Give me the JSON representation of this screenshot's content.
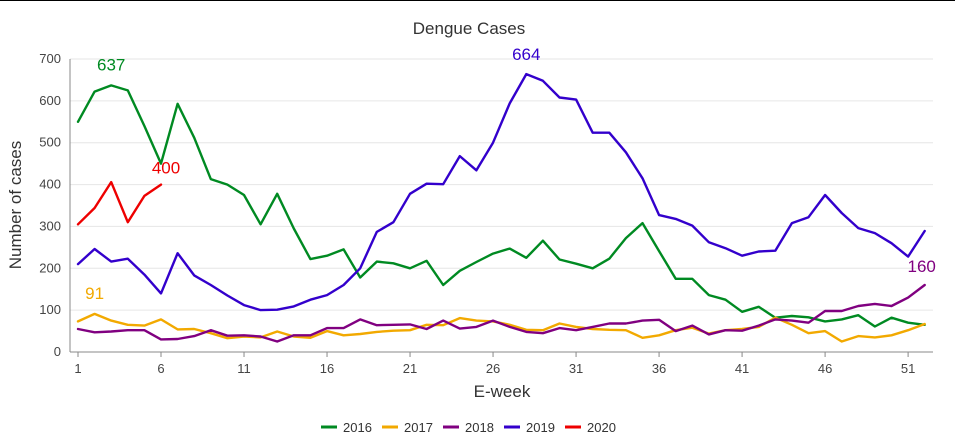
{
  "chart_data": {
    "type": "line",
    "title": "Dengue Cases",
    "xlabel": "E-week",
    "ylabel": "Number of cases",
    "xlim": [
      1,
      52
    ],
    "ylim": [
      0,
      700
    ],
    "x_ticks": [
      1,
      6,
      11,
      16,
      21,
      26,
      31,
      36,
      41,
      46,
      51
    ],
    "y_ticks": [
      0,
      100,
      200,
      300,
      400,
      500,
      600,
      700
    ],
    "grid": "horizontal",
    "legend_position": "bottom",
    "series": [
      {
        "name": "2016",
        "color": "#008a22",
        "x": [
          1,
          2,
          3,
          4,
          5,
          6,
          7,
          8,
          9,
          10,
          11,
          12,
          13,
          14,
          15,
          16,
          17,
          18,
          19,
          20,
          21,
          22,
          23,
          24,
          25,
          26,
          27,
          28,
          29,
          30,
          31,
          32,
          33,
          34,
          35,
          36,
          37,
          38,
          39,
          40,
          41,
          42,
          43,
          44,
          45,
          46,
          47,
          48,
          49,
          50,
          51,
          52
        ],
        "values": [
          550,
          622,
          637,
          625,
          540,
          450,
          593,
          512,
          413,
          400,
          375,
          305,
          378,
          295,
          222,
          230,
          245,
          178,
          216,
          212,
          200,
          218,
          160,
          194,
          215,
          235,
          247,
          225,
          266,
          221,
          211,
          200,
          223,
          272,
          308,
          241,
          175,
          175,
          136,
          125,
          96,
          108,
          82,
          86,
          83,
          73,
          78,
          88,
          61,
          82,
          70,
          65
        ]
      },
      {
        "name": "2017",
        "color": "#f2a900",
        "x": [
          1,
          2,
          3,
          4,
          5,
          6,
          7,
          8,
          9,
          10,
          11,
          12,
          13,
          14,
          15,
          16,
          17,
          18,
          19,
          20,
          21,
          22,
          23,
          24,
          25,
          26,
          27,
          28,
          29,
          30,
          31,
          32,
          33,
          34,
          35,
          36,
          37,
          38,
          39,
          40,
          41,
          42,
          43,
          44,
          45,
          46,
          47,
          48,
          49,
          50,
          51,
          52
        ],
        "values": [
          73,
          91,
          75,
          65,
          63,
          78,
          54,
          55,
          45,
          33,
          37,
          35,
          49,
          37,
          34,
          50,
          40,
          43,
          48,
          51,
          52,
          65,
          64,
          81,
          75,
          73,
          65,
          53,
          52,
          68,
          60,
          55,
          53,
          52,
          34,
          40,
          52,
          58,
          44,
          52,
          55,
          60,
          82,
          65,
          45,
          50,
          25,
          38,
          35,
          40,
          52,
          67
        ]
      },
      {
        "name": "2018",
        "color": "#800080",
        "x": [
          1,
          2,
          3,
          4,
          5,
          6,
          7,
          8,
          9,
          10,
          11,
          12,
          13,
          14,
          15,
          16,
          17,
          18,
          19,
          20,
          21,
          22,
          23,
          24,
          25,
          26,
          27,
          28,
          29,
          30,
          31,
          32,
          33,
          34,
          35,
          36,
          37,
          38,
          39,
          40,
          41,
          42,
          43,
          44,
          45,
          46,
          47,
          48,
          49,
          50,
          51,
          52
        ],
        "values": [
          55,
          47,
          49,
          52,
          52,
          30,
          31,
          38,
          52,
          39,
          40,
          37,
          25,
          40,
          40,
          57,
          57,
          78,
          64,
          65,
          66,
          55,
          75,
          56,
          60,
          75,
          60,
          48,
          45,
          57,
          52,
          60,
          68,
          68,
          75,
          77,
          50,
          63,
          42,
          52,
          51,
          63,
          78,
          75,
          70,
          98,
          98,
          110,
          115,
          110,
          130,
          160
        ]
      },
      {
        "name": "2019",
        "color": "#3300cc",
        "x": [
          1,
          2,
          3,
          4,
          5,
          6,
          7,
          8,
          9,
          10,
          11,
          12,
          13,
          14,
          15,
          16,
          17,
          18,
          19,
          20,
          21,
          22,
          23,
          24,
          25,
          26,
          27,
          28,
          29,
          30,
          31,
          32,
          33,
          34,
          35,
          36,
          37,
          38,
          39,
          40,
          41,
          42,
          43,
          44,
          45,
          46,
          47,
          48,
          49,
          50,
          51,
          52
        ],
        "values": [
          210,
          246,
          216,
          223,
          185,
          140,
          236,
          183,
          160,
          135,
          112,
          100,
          101,
          109,
          125,
          136,
          160,
          200,
          287,
          310,
          378,
          402,
          401,
          468,
          434,
          500,
          594,
          664,
          648,
          608,
          603,
          524,
          524,
          477,
          415,
          327,
          318,
          302,
          262,
          248,
          230,
          240,
          242,
          308,
          322,
          375,
          332,
          296,
          284,
          260,
          228,
          289
        ]
      },
      {
        "name": "2020",
        "color": "#ee0000",
        "x": [
          1,
          2,
          3,
          4,
          5,
          6
        ],
        "values": [
          305,
          344,
          406,
          310,
          373,
          400
        ]
      }
    ],
    "annotations": [
      {
        "text": "637",
        "series": "2016",
        "x": 3,
        "y": 637
      },
      {
        "text": "91",
        "series": "2017",
        "x": 2,
        "y": 91
      },
      {
        "text": "664",
        "series": "2019",
        "x": 28,
        "y": 664
      },
      {
        "text": "400",
        "series": "2020",
        "x": 6,
        "y": 400
      },
      {
        "text": "160",
        "series": "2018",
        "x": 52,
        "y": 160
      }
    ]
  }
}
